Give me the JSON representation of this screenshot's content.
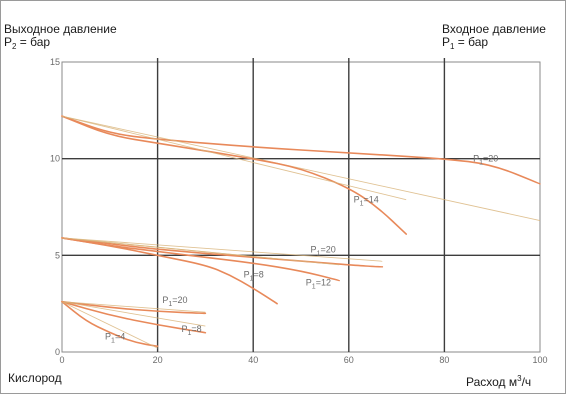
{
  "chart_data": {
    "type": "line",
    "ylabel_outlet": "Выходное давление",
    "ylabel_outlet_formula": {
      "symbol": "P",
      "sub": "2",
      "rest": " = бар"
    },
    "ylabel_inlet": "Входное давление",
    "ylabel_inlet_formula": {
      "symbol": "P",
      "sub": "1",
      "rest": " = бар"
    },
    "xlabel": {
      "text": "Расход м",
      "sup": "3",
      "rest": "/ч"
    },
    "gas": "Кислород",
    "xlim": [
      0,
      100
    ],
    "ylim": [
      0,
      15
    ],
    "x_ticks": [
      "0",
      "20",
      "40",
      "60",
      "80",
      "100"
    ],
    "y_ticks": [
      {
        "value": 0,
        "label": "0"
      },
      {
        "value": 5,
        "label": "5"
      },
      {
        "value": 10,
        "label": "10"
      },
      {
        "value": 15,
        "label": "15"
      }
    ],
    "grid": true,
    "colors": {
      "curve": "#e8895a",
      "tangent": "#d9b47a",
      "grid": "#3d3d3d",
      "label": "#6b6b6b"
    },
    "series": [
      {
        "name": "P1=20",
        "label": {
          "text": "P",
          "sub": "1",
          "rest": "=20",
          "at": [
            86,
            10.0
          ]
        },
        "x": [
          0,
          10,
          20,
          40,
          60,
          80,
          90,
          100
        ],
        "y": [
          12.2,
          11.3,
          11.0,
          10.6,
          10.3,
          10.0,
          9.7,
          8.7
        ]
      },
      {
        "name": "P1=14",
        "label": {
          "text": "P",
          "sub": "1",
          "rest": "=14",
          "at": [
            61,
            7.9
          ]
        },
        "x": [
          0,
          10,
          20,
          40,
          50,
          60,
          66,
          72
        ],
        "y": [
          12.2,
          11.2,
          10.8,
          10.0,
          9.5,
          8.5,
          7.5,
          6.1
        ]
      },
      {
        "name": "P1=20",
        "label": {
          "text": "P",
          "sub": "1",
          "rest": "=20",
          "at": [
            52,
            5.3
          ]
        },
        "x": [
          0,
          10,
          20,
          40,
          60,
          67
        ],
        "y": [
          5.9,
          5.6,
          5.3,
          4.9,
          4.5,
          4.4
        ]
      },
      {
        "name": "P1=12",
        "label": {
          "text": "P",
          "sub": "1",
          "rest": "=12",
          "at": [
            51,
            3.6
          ]
        },
        "x": [
          0,
          10,
          20,
          30,
          40,
          50,
          58
        ],
        "y": [
          5.9,
          5.5,
          5.2,
          4.9,
          4.6,
          4.2,
          3.7
        ]
      },
      {
        "name": "P1=8",
        "label": {
          "text": "P",
          "sub": "1",
          "rest": "=8",
          "at": [
            38,
            4.0
          ]
        },
        "x": [
          0,
          10,
          20,
          30,
          35,
          40,
          45
        ],
        "y": [
          5.9,
          5.5,
          5.0,
          4.5,
          4.0,
          3.3,
          2.5
        ]
      },
      {
        "name": "P1=20",
        "label": {
          "text": "P",
          "sub": "1",
          "rest": "=20",
          "at": [
            21,
            2.7
          ]
        },
        "x": [
          0,
          10,
          20,
          30
        ],
        "y": [
          2.6,
          2.3,
          2.1,
          2.0
        ]
      },
      {
        "name": "P1=8",
        "label": {
          "text": "P",
          "sub": "1",
          "rest": "=8",
          "at": [
            25,
            1.2
          ]
        },
        "x": [
          0,
          10,
          20,
          30
        ],
        "y": [
          2.6,
          1.9,
          1.4,
          1.0
        ]
      },
      {
        "name": "P1=4",
        "label": {
          "text": "P",
          "sub": "1",
          "rest": "=4",
          "at": [
            9,
            0.8
          ]
        },
        "x": [
          0,
          5,
          10,
          15,
          20
        ],
        "y": [
          2.6,
          1.6,
          1.0,
          0.5,
          0.3
        ]
      }
    ]
  }
}
